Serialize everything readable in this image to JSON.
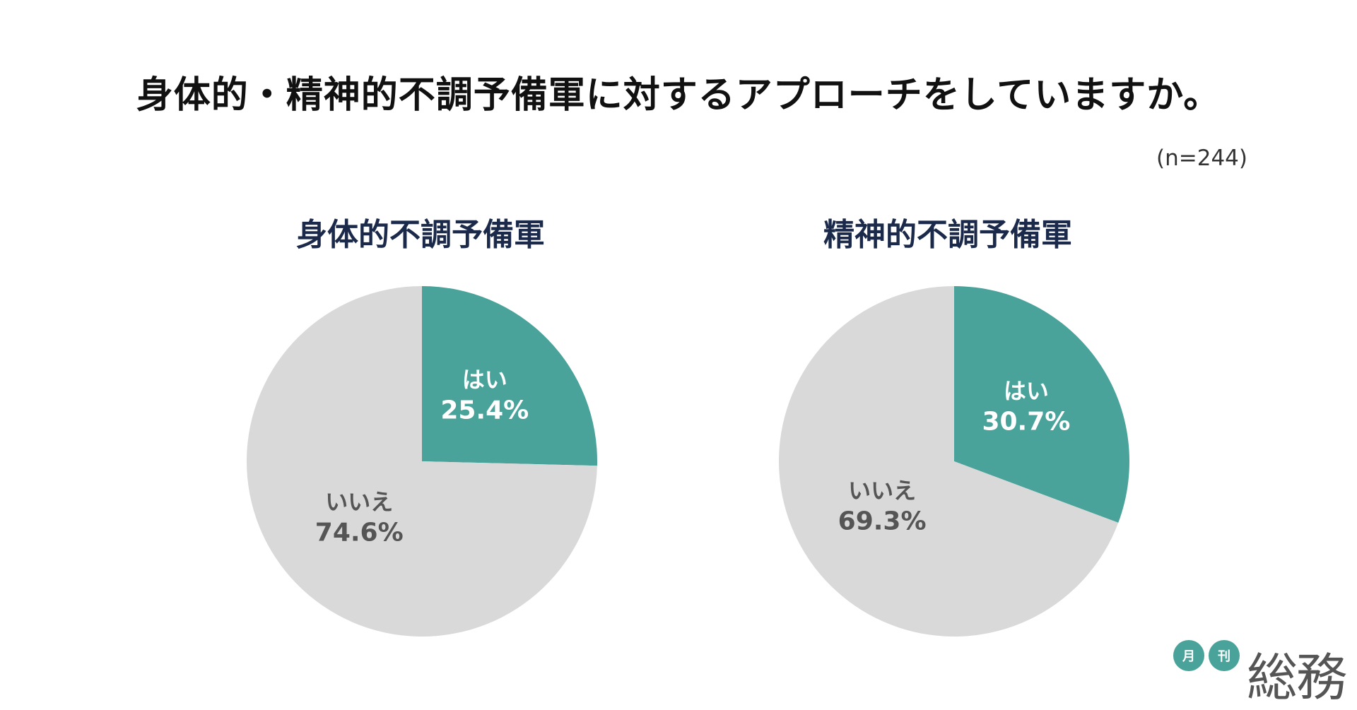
{
  "title": "身体的・精神的不調予備軍に対するアプローチをしていますか。",
  "sample_size": "(n=244)",
  "logo": {
    "char1": "月",
    "char2": "刊",
    "name": "総務"
  },
  "colors": {
    "yes": "#4aa39a",
    "no": "#d9d9d9",
    "yes_text": "#ffffff",
    "no_text": "#555555"
  },
  "chart_data": [
    {
      "type": "pie",
      "title": "身体的不調予備軍",
      "slices": [
        {
          "label": "はい",
          "value": 25.4,
          "display": "25.4%"
        },
        {
          "label": "いいえ",
          "value": 74.6,
          "display": "74.6%"
        }
      ]
    },
    {
      "type": "pie",
      "title": "精神的不調予備軍",
      "slices": [
        {
          "label": "はい",
          "value": 30.7,
          "display": "30.7%"
        },
        {
          "label": "いいえ",
          "value": 69.3,
          "display": "69.3%"
        }
      ]
    }
  ]
}
